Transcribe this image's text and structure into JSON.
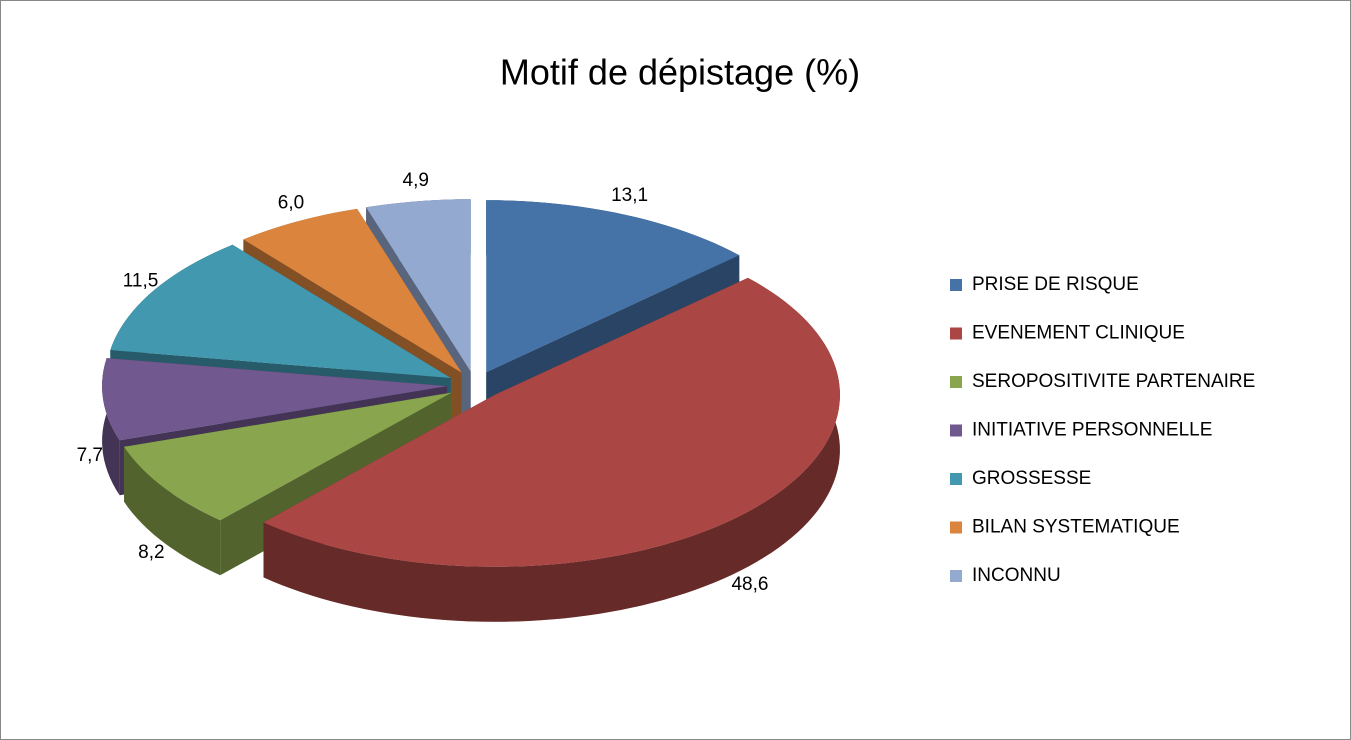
{
  "chart_data": {
    "type": "pie3d",
    "title": "Motif de dépistage (%)",
    "categories": [
      "PRISE DE RISQUE",
      "EVENEMENT CLINIQUE",
      "SEROPOSITIVITE PARTENAIRE",
      "INITIATIVE PERSONNELLE",
      "GROSSESSE",
      "BILAN SYSTEMATIQUE",
      "INCONNU"
    ],
    "values": [
      13.1,
      48.6,
      8.2,
      7.7,
      11.5,
      6.0,
      4.9
    ],
    "value_labels": [
      "13,1",
      "48,6",
      "8,2",
      "7,7",
      "11,5",
      "6,0",
      "4,9"
    ],
    "colors": [
      "#4572a7",
      "#aa4643",
      "#89a54e",
      "#71588f",
      "#4198af",
      "#db843d",
      "#93a9cf"
    ],
    "legend": "right"
  }
}
